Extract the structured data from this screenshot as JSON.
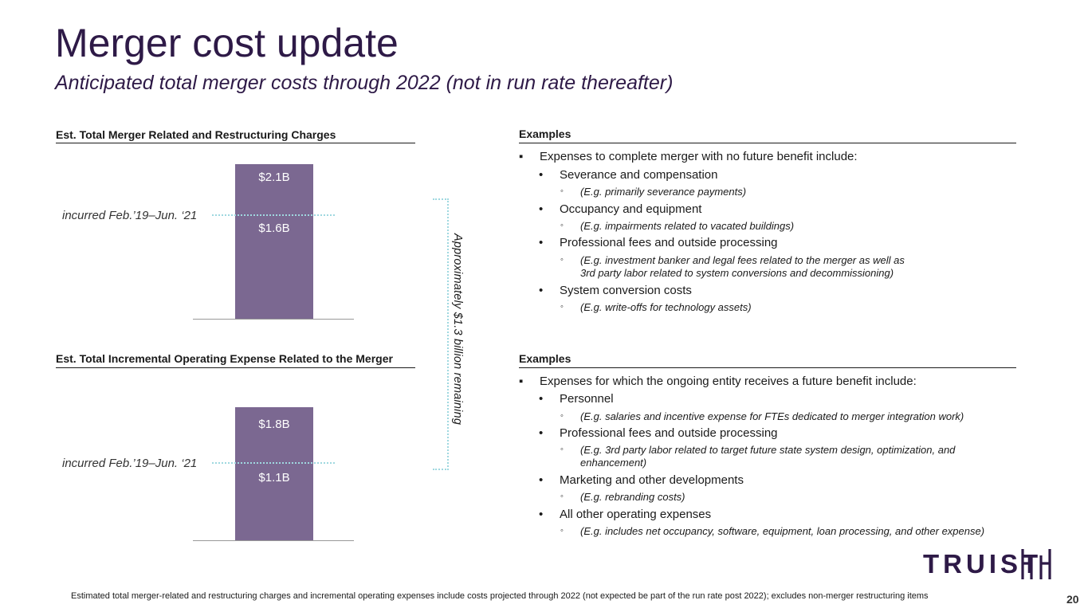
{
  "header": {
    "title": "Merger cost update",
    "subtitle": "Anticipated total merger costs through 2022 (not in run rate thereafter)"
  },
  "left": {
    "chart1_heading": "Est. Total Merger Related and Restructuring Charges",
    "chart2_heading": "Est. Total Incremental Operating Expense Related to the Merger",
    "remaining_note": "Approximately $1.3 billion remaining"
  },
  "chart_data": [
    {
      "type": "bar",
      "title": "Est. Total Merger Related and Restructuring Charges",
      "categories": [
        ""
      ],
      "values": [
        2.1
      ],
      "unit": "$B",
      "value_labels": [
        "$2.1B"
      ],
      "annotations": [
        {
          "label": "incurred Feb.’19–Jun. ‘21",
          "value": 1.6,
          "value_label": "$1.6B"
        }
      ],
      "bar_color": "#7b6891"
    },
    {
      "type": "bar",
      "title": "Est. Total Incremental Operating Expense Related to the Merger",
      "categories": [
        ""
      ],
      "values": [
        1.8
      ],
      "unit": "$B",
      "value_labels": [
        "$1.8B"
      ],
      "annotations": [
        {
          "label": "incurred Feb.’19–Jun. ‘21",
          "value": 1.1,
          "value_label": "$1.1B"
        }
      ],
      "bar_color": "#7b6891"
    }
  ],
  "examples1": {
    "heading": "Examples",
    "items": [
      {
        "level": 0,
        "mark": "▪",
        "text": "Expenses to complete merger with no future benefit include:"
      },
      {
        "level": 1,
        "mark": "•",
        "text": "Severance and compensation"
      },
      {
        "level": 2,
        "mark": "◦",
        "text": "(E.g. primarily severance payments)"
      },
      {
        "level": 1,
        "mark": "•",
        "text": "Occupancy and equipment"
      },
      {
        "level": 2,
        "mark": "◦",
        "text": "(E.g. impairments related to vacated buildings)"
      },
      {
        "level": 1,
        "mark": "•",
        "text": "Professional fees and outside processing"
      },
      {
        "level": 2,
        "mark": "◦",
        "text": "(E.g. investment banker and legal fees related to the merger as well as",
        "text2": "3rd party labor related to system conversions and decommissioning)"
      },
      {
        "level": 1,
        "mark": "•",
        "text": "System conversion costs"
      },
      {
        "level": 2,
        "mark": "◦",
        "text": "(E.g. write-offs for technology assets)"
      }
    ]
  },
  "examples2": {
    "heading": "Examples",
    "items": [
      {
        "level": 0,
        "mark": "▪",
        "text": "Expenses for which the ongoing entity receives a future benefit include:"
      },
      {
        "level": 1,
        "mark": "•",
        "text": "Personnel"
      },
      {
        "level": 2,
        "mark": "◦",
        "text": "(E.g. salaries and incentive expense for FTEs dedicated to merger integration work)"
      },
      {
        "level": 1,
        "mark": "•",
        "text": "Professional fees and outside processing"
      },
      {
        "level": 2,
        "mark": "◦",
        "text": "(E.g. 3rd party labor related to target future state system design, optimization, and",
        "text2": "enhancement)"
      },
      {
        "level": 1,
        "mark": "•",
        "text": "Marketing and other developments"
      },
      {
        "level": 2,
        "mark": "◦",
        "text": "(E.g. rebranding costs)"
      },
      {
        "level": 1,
        "mark": "•",
        "text": "All other operating expenses"
      },
      {
        "level": 2,
        "mark": "◦",
        "text": "(E.g. includes net occupancy, software, equipment, loan processing, and other expense)"
      }
    ]
  },
  "footer": {
    "footnote": "Estimated total merger-related and restructuring charges and incremental operating expenses include costs projected through 2022 (not expected be part of the run rate post 2022); excludes non-merger restructuring items",
    "page_number": "20",
    "logo_text": "TRUIST",
    "logo_color": "#2e1a47"
  },
  "colors": {
    "title": "#2e1a47",
    "bar": "#7b6891",
    "dotted_accent": "#9fd8e0"
  }
}
